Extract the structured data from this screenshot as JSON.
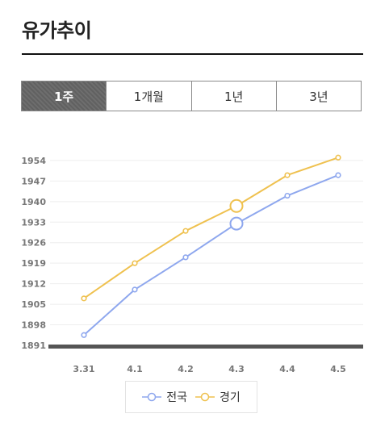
{
  "header": {
    "title": "유가추이"
  },
  "tabs": [
    {
      "label": "1주",
      "active": true
    },
    {
      "label": "1개월",
      "active": false
    },
    {
      "label": "1년",
      "active": false
    },
    {
      "label": "3년",
      "active": false
    }
  ],
  "colors": {
    "series_1": "#8ea7ee",
    "series_2": "#efc14f",
    "baseline": "#555555",
    "grid": "#eeeeee"
  },
  "chart_data": {
    "type": "line",
    "categories": [
      "3.31",
      "4.1",
      "4.2",
      "4.3",
      "4.4",
      "4.5"
    ],
    "ylim": [
      1891,
      1957
    ],
    "yticks": [
      1891,
      1898,
      1905,
      1912,
      1919,
      1926,
      1933,
      1940,
      1947,
      1954
    ],
    "grid": true,
    "legend_position": "bottom-center",
    "highlight_index": 3,
    "series": [
      {
        "name": "전국",
        "values": [
          1894.5,
          1910,
          1921,
          1932.5,
          1942,
          1949
        ]
      },
      {
        "name": "경기",
        "values": [
          1907,
          1919,
          1930,
          1938.5,
          1949,
          1955
        ]
      }
    ]
  }
}
